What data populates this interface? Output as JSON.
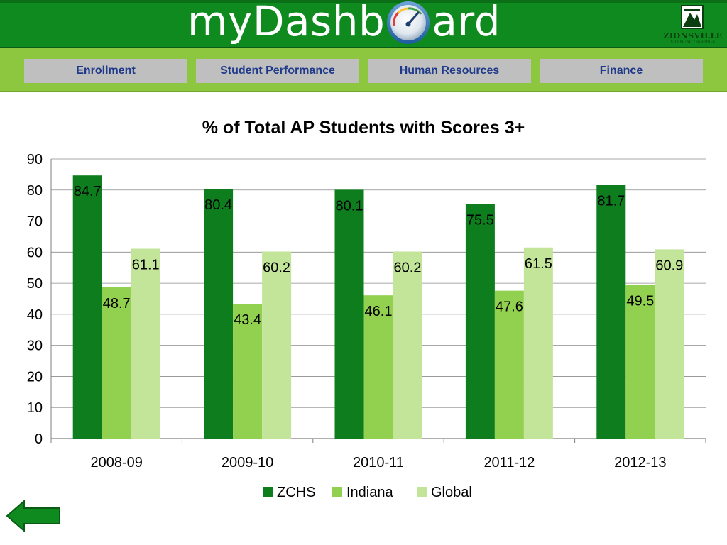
{
  "header": {
    "brand_before": "myDashb",
    "brand_after": "ard",
    "gauge_icon": "gauge-icon",
    "logo_text": "ZIONSVILLE",
    "logo_subtext": "COMMUNITY SCHOOLS"
  },
  "nav": {
    "items": [
      {
        "label": "Enrollment"
      },
      {
        "label": "Student Performance"
      },
      {
        "label": "Human Resources"
      },
      {
        "label": "Finance"
      }
    ]
  },
  "colors": {
    "header_green": "#0e8a1e",
    "nav_green": "#8dc63f",
    "nav_button": "#bfbfbf",
    "nav_link": "#1f3a8a",
    "series_zchs": "#0e7d1e",
    "series_indiana": "#92d050",
    "series_global": "#c2e59a",
    "back_arrow": "#0e8a1e"
  },
  "chart_data": {
    "type": "bar",
    "title": "% of Total AP Students with Scores 3+",
    "categories": [
      "2008-09",
      "2009-10",
      "2010-11",
      "2011-12",
      "2012-13"
    ],
    "series": [
      {
        "name": "ZCHS",
        "color": "#0e7d1e",
        "values": [
          84.7,
          80.4,
          80.1,
          75.5,
          81.7
        ]
      },
      {
        "name": "Indiana",
        "color": "#92d050",
        "values": [
          48.7,
          43.4,
          46.1,
          47.6,
          49.5
        ]
      },
      {
        "name": "Global",
        "color": "#c2e59a",
        "values": [
          61.1,
          60.2,
          60.2,
          61.5,
          60.9
        ]
      }
    ],
    "ylim": [
      0,
      90
    ],
    "yticks": [
      0,
      10,
      20,
      30,
      40,
      50,
      60,
      70,
      80,
      90
    ],
    "grid": true,
    "legend": "bottom",
    "xlabel": "",
    "ylabel": ""
  },
  "footer": {
    "back_icon": "back-arrow-icon"
  }
}
